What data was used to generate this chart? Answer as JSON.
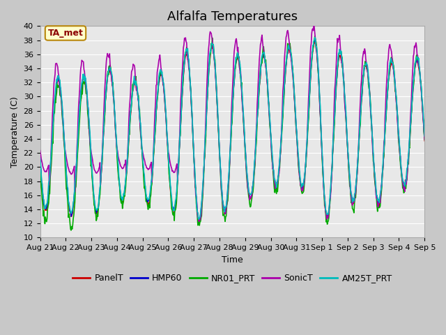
{
  "title": "Alfalfa Temperatures",
  "xlabel": "Time",
  "ylabel": "Temperature (C)",
  "ylim": [
    10,
    40
  ],
  "annotation_text": "TA_met",
  "annotation_color": "#8B0000",
  "annotation_bg": "#FFFFCC",
  "annotation_border": "#B8860B",
  "series_names": [
    "PanelT",
    "HMP60",
    "NR01_PRT",
    "SonicT",
    "AM25T_PRT"
  ],
  "series_colors": [
    "#CC0000",
    "#0000CC",
    "#00AA00",
    "#AA00AA",
    "#00BBBB"
  ],
  "series_lw": [
    1.0,
    1.0,
    1.2,
    1.2,
    1.2
  ],
  "xtick_labels": [
    "Aug 21",
    "Aug 22",
    "Aug 23",
    "Aug 24",
    "Aug 25",
    "Aug 26",
    "Aug 27",
    "Aug 28",
    "Aug 29",
    "Aug 30",
    "Aug 31",
    "Sep 1",
    "Sep 2",
    "Sep 3",
    "Sep 4",
    "Sep 5"
  ],
  "ytick_labels": [
    "10",
    "12",
    "14",
    "16",
    "18",
    "20",
    "22",
    "24",
    "26",
    "28",
    "30",
    "32",
    "34",
    "36",
    "38",
    "40"
  ],
  "plot_bg": "#E8E8E8",
  "grid_color": "#FFFFFF",
  "title_fontsize": 13,
  "axis_fontsize": 9,
  "tick_fontsize": 8,
  "legend_fontsize": 9
}
